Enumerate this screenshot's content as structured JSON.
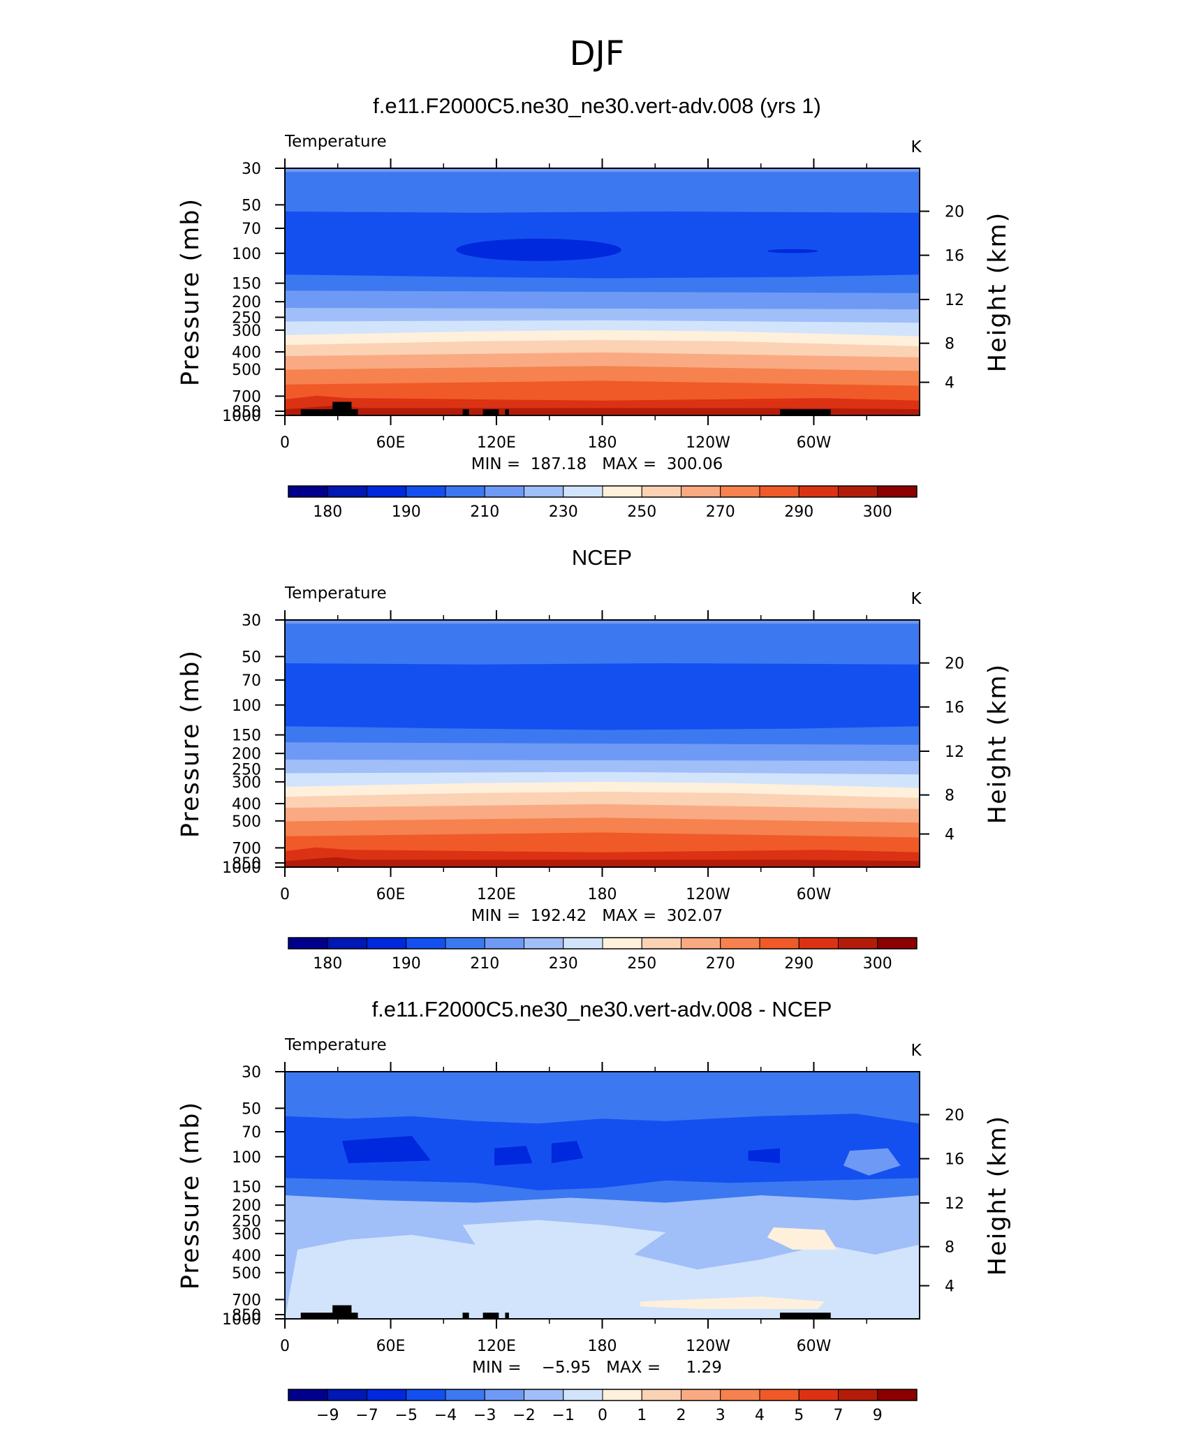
{
  "figure_title": "DJF",
  "chart_data": [
    {
      "type": "heatmap",
      "title": "f.e11.F2000C5.ne30_ne30.vert-adv.008 (yrs 1)",
      "variable": "Temperature",
      "units": "K",
      "ylabel": "Pressure  (mb)",
      "ylabel_right": "Height  (km)",
      "x_ticks": [
        "0",
        "60E",
        "120E",
        "180",
        "120W",
        "60W"
      ],
      "y_ticks": [
        "30",
        "50",
        "70",
        "100",
        "150",
        "200",
        "250",
        "300",
        "400",
        "500",
        "700",
        "850",
        "1000"
      ],
      "y2_ticks": [
        "20",
        "16",
        "12",
        "8",
        "4"
      ],
      "stats": "MIN =  187.18   MAX =  300.06",
      "min": 187.18,
      "max": 300.06,
      "colorbar_labels": [
        "180",
        "190",
        "210",
        "230",
        "250",
        "270",
        "290",
        "300"
      ]
    },
    {
      "type": "heatmap",
      "title": "NCEP",
      "variable": "Temperature",
      "units": "K",
      "ylabel": "Pressure  (mb)",
      "ylabel_right": "Height  (km)",
      "x_ticks": [
        "0",
        "60E",
        "120E",
        "180",
        "120W",
        "60W"
      ],
      "y_ticks": [
        "30",
        "50",
        "70",
        "100",
        "150",
        "200",
        "250",
        "300",
        "400",
        "500",
        "700",
        "850",
        "1000"
      ],
      "y2_ticks": [
        "20",
        "16",
        "12",
        "8",
        "4"
      ],
      "stats": "MIN =  192.42   MAX =  302.07",
      "min": 192.42,
      "max": 302.07,
      "colorbar_labels": [
        "180",
        "190",
        "210",
        "230",
        "250",
        "270",
        "290",
        "300"
      ]
    },
    {
      "type": "heatmap",
      "title": "f.e11.F2000C5.ne30_ne30.vert-adv.008 - NCEP",
      "variable": "Temperature",
      "units": "K",
      "ylabel": "Pressure  (mb)",
      "ylabel_right": "Height  (km)",
      "x_ticks": [
        "0",
        "60E",
        "120E",
        "180",
        "120W",
        "60W"
      ],
      "y_ticks": [
        "30",
        "50",
        "70",
        "100",
        "150",
        "200",
        "250",
        "300",
        "400",
        "500",
        "700",
        "850",
        "1000"
      ],
      "y2_ticks": [
        "20",
        "16",
        "12",
        "8",
        "4"
      ],
      "stats": "MIN =    −5.95   MAX =     1.29",
      "min": -5.95,
      "max": 1.29,
      "colorbar_labels": [
        "−9",
        "−7",
        "−5",
        "−4",
        "−3",
        "−2",
        "−1",
        "0",
        "1",
        "2",
        "3",
        "4",
        "5",
        "7",
        "9"
      ]
    }
  ],
  "palette": [
    "#00008c",
    "#0018b4",
    "#0028dc",
    "#1450f0",
    "#3c78f0",
    "#6e9af5",
    "#a0bef8",
    "#d2e4fc",
    "#fff0dc",
    "#fcd2b4",
    "#faaa82",
    "#f5824f",
    "#f05a28",
    "#dc3214",
    "#b41c0a",
    "#8c0000"
  ]
}
